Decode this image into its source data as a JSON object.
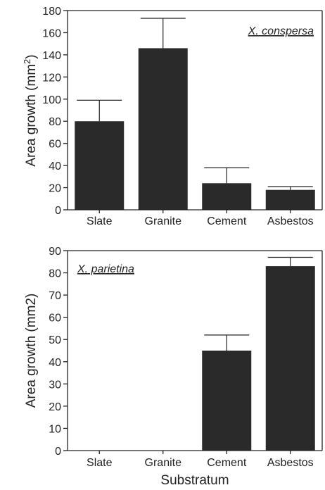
{
  "chart_data": [
    {
      "type": "bar",
      "annotation": "X. conspersa",
      "categories": [
        "Slate",
        "Granite",
        "Cement",
        "Asbestos"
      ],
      "values": [
        80,
        146,
        24,
        18
      ],
      "error_plus": [
        19,
        27,
        14,
        3
      ],
      "ylabel": "Area growth (mm²)",
      "ylabel_main": "Area growth (mm",
      "ylabel_sup": "2",
      "ylabel_close": ")",
      "xlabel": "",
      "ylim": [
        0,
        180
      ],
      "yticks": [
        0,
        20,
        40,
        60,
        80,
        100,
        120,
        140,
        160,
        180
      ],
      "bar_color": "#2a2a2a",
      "legend": "top-right annotation"
    },
    {
      "type": "bar",
      "annotation": "X. parietina",
      "categories": [
        "Slate",
        "Granite",
        "Cement",
        "Asbestos"
      ],
      "values": [
        0,
        0,
        45,
        83
      ],
      "error_plus": [
        0,
        0,
        7,
        4
      ],
      "ylabel": "Area growth (mm2)",
      "xlabel": "Substratum",
      "ylim": [
        0,
        90
      ],
      "yticks": [
        0,
        10,
        20,
        30,
        40,
        50,
        60,
        70,
        80,
        90
      ],
      "bar_color": "#2a2a2a",
      "legend": "top-left annotation"
    }
  ]
}
